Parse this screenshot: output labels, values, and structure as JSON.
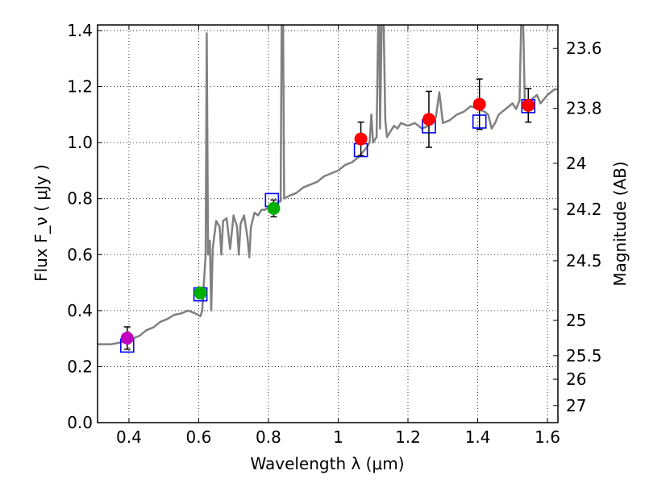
{
  "chart_data": {
    "type": "scatter",
    "xlabel": "Wavelength  λ (μm)",
    "ylabel": "Flux  F_ν  ( μJy )",
    "y2label": "Magnitude (AB)",
    "xlim": [
      0.31,
      1.63
    ],
    "ylim": [
      0.0,
      1.42
    ],
    "grid": true,
    "x_ticks": [
      {
        "value": 0.4,
        "label": "0.4"
      },
      {
        "value": 0.6,
        "label": "0.6"
      },
      {
        "value": 0.8,
        "label": "0.8"
      },
      {
        "value": 1.0,
        "label": "1"
      },
      {
        "value": 1.2,
        "label": "1.2"
      },
      {
        "value": 1.4,
        "label": "1.4"
      },
      {
        "value": 1.6,
        "label": "1.6"
      }
    ],
    "y_ticks": [
      {
        "value": 0.0,
        "label": "0.0"
      },
      {
        "value": 0.2,
        "label": "0.2"
      },
      {
        "value": 0.4,
        "label": "0.4"
      },
      {
        "value": 0.6,
        "label": "0.6"
      },
      {
        "value": 0.8,
        "label": "0.8"
      },
      {
        "value": 1.0,
        "label": "1.0"
      },
      {
        "value": 1.2,
        "label": "1.2"
      },
      {
        "value": 1.4,
        "label": "1.4"
      }
    ],
    "y2_ticks": [
      {
        "flux": 1.336,
        "label": "23.6"
      },
      {
        "flux": 1.122,
        "label": "23.8"
      },
      {
        "flux": 0.926,
        "label": "24"
      },
      {
        "flux": 0.762,
        "label": "24.2"
      },
      {
        "flux": 0.578,
        "label": "24.5"
      },
      {
        "flux": 0.365,
        "label": "25"
      },
      {
        "flux": 0.239,
        "label": "25.5"
      },
      {
        "flux": 0.155,
        "label": "26"
      },
      {
        "flux": 0.061,
        "label": "27"
      }
    ],
    "model_sed": {
      "name": "model spectrum",
      "color": "#808080",
      "points": [
        [
          0.31,
          0.28
        ],
        [
          0.33,
          0.28
        ],
        [
          0.35,
          0.28
        ],
        [
          0.37,
          0.285
        ],
        [
          0.39,
          0.29
        ],
        [
          0.41,
          0.3
        ],
        [
          0.43,
          0.31
        ],
        [
          0.45,
          0.33
        ],
        [
          0.47,
          0.34
        ],
        [
          0.49,
          0.36
        ],
        [
          0.51,
          0.37
        ],
        [
          0.53,
          0.385
        ],
        [
          0.55,
          0.39
        ],
        [
          0.57,
          0.4
        ],
        [
          0.59,
          0.39
        ],
        [
          0.605,
          0.38
        ],
        [
          0.61,
          0.4
        ],
        [
          0.615,
          0.5
        ],
        [
          0.62,
          0.6
        ],
        [
          0.623,
          1.39
        ],
        [
          0.627,
          0.6
        ],
        [
          0.632,
          0.65
        ],
        [
          0.636,
          0.4
        ],
        [
          0.64,
          0.62
        ],
        [
          0.65,
          0.72
        ],
        [
          0.66,
          0.7
        ],
        [
          0.665,
          0.6
        ],
        [
          0.67,
          0.72
        ],
        [
          0.68,
          0.73
        ],
        [
          0.69,
          0.62
        ],
        [
          0.7,
          0.74
        ],
        [
          0.71,
          0.7
        ],
        [
          0.715,
          0.6
        ],
        [
          0.72,
          0.71
        ],
        [
          0.73,
          0.74
        ],
        [
          0.74,
          0.66
        ],
        [
          0.745,
          0.59
        ],
        [
          0.75,
          0.7
        ],
        [
          0.76,
          0.75
        ],
        [
          0.77,
          0.74
        ],
        [
          0.78,
          0.76
        ],
        [
          0.79,
          0.76
        ],
        [
          0.8,
          0.77
        ],
        [
          0.81,
          0.78
        ],
        [
          0.82,
          0.78
        ],
        [
          0.83,
          0.79
        ],
        [
          0.835,
          0.79
        ],
        [
          0.838,
          1.45
        ],
        [
          0.842,
          1.45
        ],
        [
          0.845,
          0.8
        ],
        [
          0.86,
          0.81
        ],
        [
          0.88,
          0.82
        ],
        [
          0.9,
          0.84
        ],
        [
          0.92,
          0.85
        ],
        [
          0.94,
          0.86
        ],
        [
          0.96,
          0.88
        ],
        [
          0.98,
          0.89
        ],
        [
          1.0,
          0.9
        ],
        [
          1.02,
          0.92
        ],
        [
          1.04,
          0.93
        ],
        [
          1.06,
          0.95
        ],
        [
          1.08,
          0.98
        ],
        [
          1.09,
          1.0
        ],
        [
          1.095,
          1.1
        ],
        [
          1.1,
          1.0
        ],
        [
          1.11,
          1.02
        ],
        [
          1.115,
          1.45
        ],
        [
          1.118,
          1.45
        ],
        [
          1.12,
          1.05
        ],
        [
          1.125,
          1.45
        ],
        [
          1.13,
          1.45
        ],
        [
          1.135,
          1.08
        ],
        [
          1.14,
          1.02
        ],
        [
          1.16,
          1.06
        ],
        [
          1.17,
          1.05
        ],
        [
          1.18,
          1.07
        ],
        [
          1.2,
          1.06
        ],
        [
          1.22,
          1.07
        ],
        [
          1.24,
          1.05
        ],
        [
          1.26,
          1.06
        ],
        [
          1.28,
          1.09
        ],
        [
          1.29,
          1.18
        ],
        [
          1.3,
          1.07
        ],
        [
          1.32,
          1.08
        ],
        [
          1.34,
          1.1
        ],
        [
          1.36,
          1.11
        ],
        [
          1.38,
          1.13
        ],
        [
          1.4,
          1.12
        ],
        [
          1.42,
          1.11
        ],
        [
          1.43,
          1.1
        ],
        [
          1.44,
          1.05
        ],
        [
          1.45,
          1.07
        ],
        [
          1.46,
          1.1
        ],
        [
          1.48,
          1.12
        ],
        [
          1.5,
          1.14
        ],
        [
          1.51,
          1.12
        ],
        [
          1.52,
          1.15
        ],
        [
          1.525,
          1.45
        ],
        [
          1.53,
          1.45
        ],
        [
          1.535,
          1.15
        ],
        [
          1.55,
          1.15
        ],
        [
          1.57,
          1.17
        ],
        [
          1.58,
          1.14
        ],
        [
          1.6,
          1.17
        ],
        [
          1.62,
          1.19
        ],
        [
          1.63,
          1.19
        ]
      ]
    },
    "observed": [
      {
        "x": 0.395,
        "y": 0.302,
        "err": 0.04,
        "color": "#bf00bf"
      },
      {
        "x": 0.605,
        "y": 0.463,
        "err": 0.02,
        "color": "#00b000"
      },
      {
        "x": 0.815,
        "y": 0.765,
        "err": 0.03,
        "color": "#00b000"
      },
      {
        "x": 1.065,
        "y": 1.013,
        "err": 0.06,
        "color": "#ff0000"
      },
      {
        "x": 1.26,
        "y": 1.083,
        "err": 0.1,
        "color": "#ff0000"
      },
      {
        "x": 1.405,
        "y": 1.137,
        "err": 0.09,
        "color": "#ff0000"
      },
      {
        "x": 1.545,
        "y": 1.133,
        "err": 0.06,
        "color": "#ff0000"
      }
    ],
    "model_photometry": {
      "color": "#0000ff",
      "points": [
        {
          "x": 0.395,
          "y": 0.275
        },
        {
          "x": 0.605,
          "y": 0.458
        },
        {
          "x": 0.81,
          "y": 0.795
        },
        {
          "x": 1.065,
          "y": 0.973
        },
        {
          "x": 1.26,
          "y": 1.058
        },
        {
          "x": 1.405,
          "y": 1.075
        },
        {
          "x": 1.545,
          "y": 1.13
        }
      ]
    }
  }
}
